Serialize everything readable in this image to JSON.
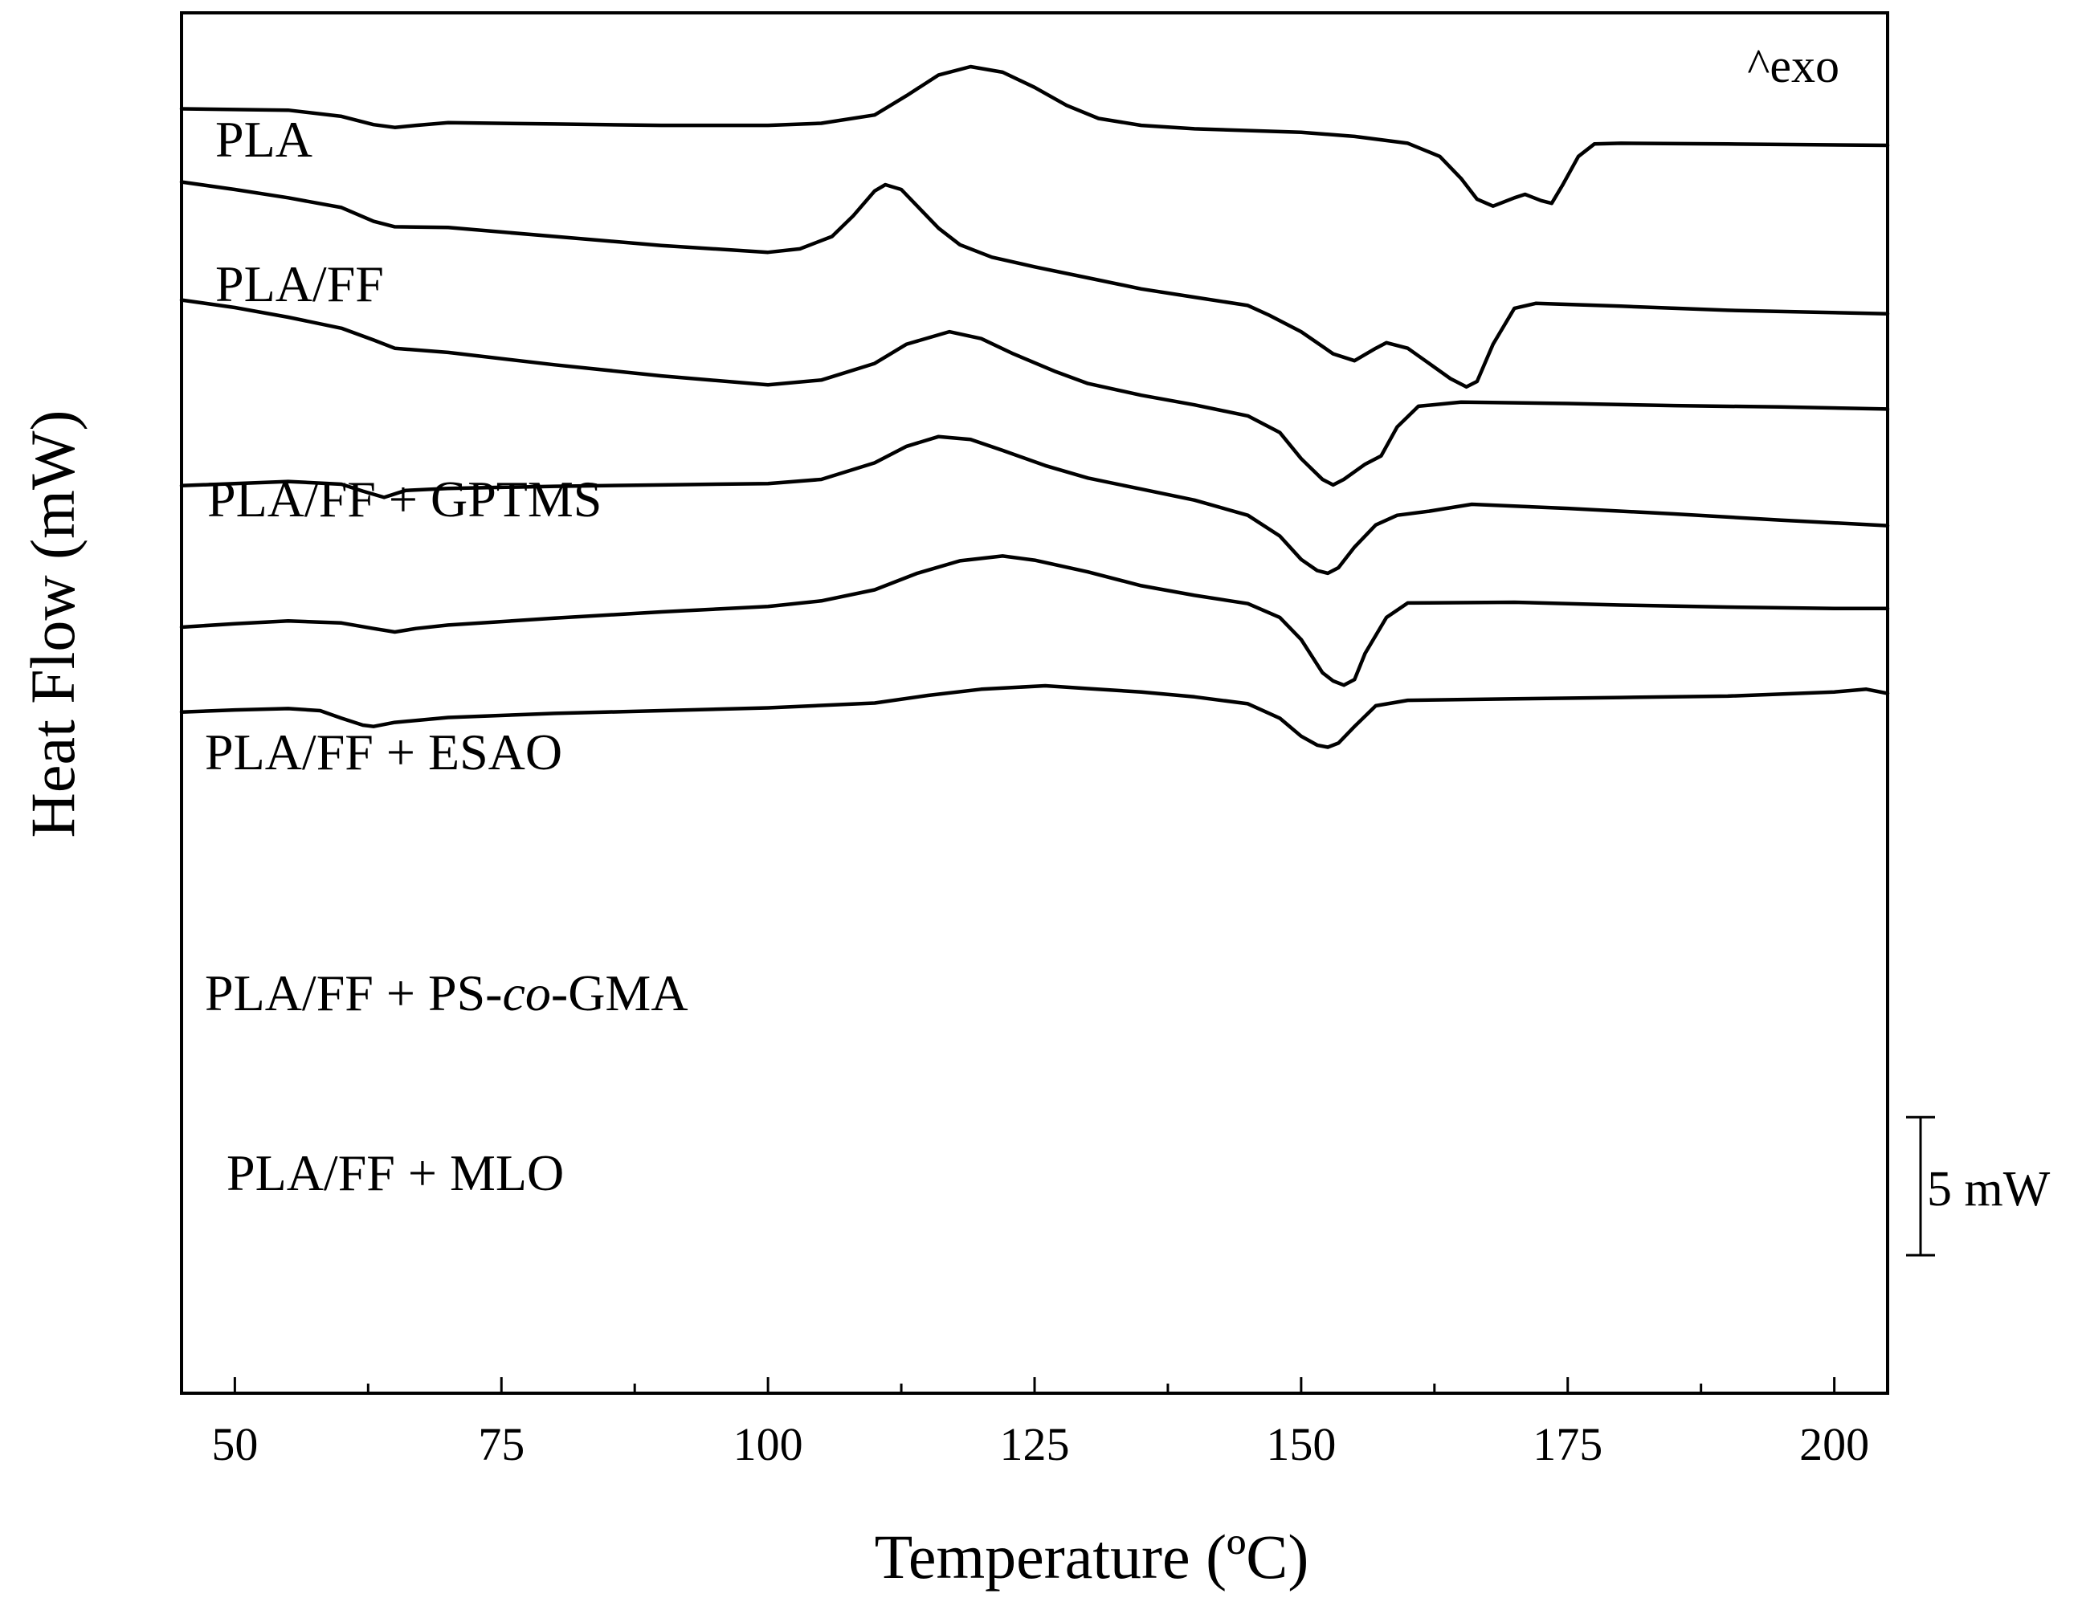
{
  "chart_data": {
    "type": "line",
    "xlabel": "Temperature (ºC)",
    "ylabel": "Heat Flow (mW)",
    "xlim": [
      45,
      205
    ],
    "ylim": [
      0,
      100
    ],
    "xticks": [
      50,
      75,
      100,
      125,
      150,
      175,
      200
    ],
    "x_minor_step": 12.5,
    "annotation": "^exo",
    "scale_bar": {
      "label": "5 mW",
      "value_mw": 5,
      "from": 10.0,
      "to": 20.0
    },
    "series": [
      {
        "name": "PLA",
        "label_parts": [
          {
            "text": "PLA",
            "italic": false
          }
        ],
        "points": [
          [
            45,
            93.05
          ],
          [
            55,
            92.95
          ],
          [
            60,
            92.5
          ],
          [
            63,
            91.9
          ],
          [
            65,
            91.7
          ],
          [
            67,
            91.85
          ],
          [
            70,
            92.05
          ],
          [
            80,
            91.95
          ],
          [
            90,
            91.85
          ],
          [
            100,
            91.85
          ],
          [
            105,
            92.0
          ],
          [
            110,
            92.6
          ],
          [
            113,
            94.0
          ],
          [
            116,
            95.5
          ],
          [
            119,
            96.1
          ],
          [
            122,
            95.7
          ],
          [
            125,
            94.6
          ],
          [
            128,
            93.3
          ],
          [
            131,
            92.35
          ],
          [
            135,
            91.85
          ],
          [
            140,
            91.6
          ],
          [
            150,
            91.35
          ],
          [
            155,
            91.05
          ],
          [
            160,
            90.55
          ],
          [
            163,
            89.6
          ],
          [
            165,
            88.0
          ],
          [
            166.5,
            86.5
          ],
          [
            168,
            86.0
          ],
          [
            170,
            86.6
          ],
          [
            171,
            86.85
          ],
          [
            172.5,
            86.4
          ],
          [
            173.5,
            86.2
          ],
          [
            174.5,
            87.5
          ],
          [
            176,
            89.6
          ],
          [
            177.5,
            90.5
          ],
          [
            180,
            90.55
          ],
          [
            190,
            90.5
          ],
          [
            205,
            90.4
          ]
        ]
      },
      {
        "name": "PLA/FF",
        "label_parts": [
          {
            "text": "PLA/FF",
            "italic": false
          }
        ],
        "points": [
          [
            45,
            87.75
          ],
          [
            50,
            87.2
          ],
          [
            55,
            86.6
          ],
          [
            60,
            85.9
          ],
          [
            63,
            84.9
          ],
          [
            65,
            84.5
          ],
          [
            70,
            84.45
          ],
          [
            80,
            83.8
          ],
          [
            90,
            83.15
          ],
          [
            100,
            82.65
          ],
          [
            103,
            82.9
          ],
          [
            106,
            83.8
          ],
          [
            108,
            85.3
          ],
          [
            110,
            87.1
          ],
          [
            111,
            87.55
          ],
          [
            112.5,
            87.2
          ],
          [
            114,
            86.0
          ],
          [
            116,
            84.4
          ],
          [
            118,
            83.2
          ],
          [
            121,
            82.3
          ],
          [
            125,
            81.6
          ],
          [
            130,
            80.8
          ],
          [
            135,
            80.0
          ],
          [
            140,
            79.4
          ],
          [
            145,
            78.8
          ],
          [
            147,
            78.1
          ],
          [
            150,
            76.9
          ],
          [
            153,
            75.3
          ],
          [
            155,
            74.8
          ],
          [
            157,
            75.7
          ],
          [
            158,
            76.1
          ],
          [
            160,
            75.7
          ],
          [
            162,
            74.6
          ],
          [
            164,
            73.5
          ],
          [
            165.5,
            72.9
          ],
          [
            166.5,
            73.3
          ],
          [
            168,
            76.0
          ],
          [
            170,
            78.6
          ],
          [
            172,
            78.95
          ],
          [
            180,
            78.75
          ],
          [
            190,
            78.45
          ],
          [
            205,
            78.2
          ]
        ]
      },
      {
        "name": "PLA/FF + GPTMS",
        "label_parts": [
          {
            "text": "PLA/FF + GPTMS",
            "italic": false
          }
        ],
        "points": [
          [
            45,
            79.2
          ],
          [
            50,
            78.65
          ],
          [
            55,
            77.95
          ],
          [
            60,
            77.15
          ],
          [
            63,
            76.3
          ],
          [
            65,
            75.7
          ],
          [
            70,
            75.4
          ],
          [
            80,
            74.5
          ],
          [
            90,
            73.7
          ],
          [
            100,
            73.05
          ],
          [
            105,
            73.4
          ],
          [
            110,
            74.6
          ],
          [
            113,
            76.0
          ],
          [
            117,
            76.9
          ],
          [
            120,
            76.4
          ],
          [
            123,
            75.3
          ],
          [
            127,
            74.0
          ],
          [
            130,
            73.15
          ],
          [
            135,
            72.3
          ],
          [
            140,
            71.6
          ],
          [
            145,
            70.8
          ],
          [
            148,
            69.6
          ],
          [
            150,
            67.7
          ],
          [
            152,
            66.2
          ],
          [
            153,
            65.8
          ],
          [
            154,
            66.2
          ],
          [
            156,
            67.3
          ],
          [
            157.5,
            67.9
          ],
          [
            159,
            70.0
          ],
          [
            161,
            71.5
          ],
          [
            165,
            71.8
          ],
          [
            175,
            71.7
          ],
          [
            185,
            71.55
          ],
          [
            195,
            71.45
          ],
          [
            205,
            71.3
          ]
        ]
      },
      {
        "name": "PLA/FF + ESAO",
        "label_parts": [
          {
            "text": "PLA/FF + ESAO",
            "italic": false
          }
        ],
        "points": [
          [
            45,
            65.75
          ],
          [
            50,
            65.9
          ],
          [
            55,
            66.05
          ],
          [
            60,
            65.85
          ],
          [
            62,
            65.35
          ],
          [
            64,
            64.9
          ],
          [
            66,
            65.4
          ],
          [
            70,
            65.55
          ],
          [
            80,
            65.7
          ],
          [
            90,
            65.8
          ],
          [
            100,
            65.9
          ],
          [
            105,
            66.2
          ],
          [
            110,
            67.4
          ],
          [
            113,
            68.6
          ],
          [
            116,
            69.3
          ],
          [
            119,
            69.1
          ],
          [
            122,
            68.3
          ],
          [
            126,
            67.2
          ],
          [
            130,
            66.3
          ],
          [
            135,
            65.5
          ],
          [
            140,
            64.7
          ],
          [
            145,
            63.6
          ],
          [
            148,
            62.1
          ],
          [
            150,
            60.4
          ],
          [
            151.5,
            59.6
          ],
          [
            152.5,
            59.4
          ],
          [
            153.5,
            59.8
          ],
          [
            155,
            61.3
          ],
          [
            157,
            62.9
          ],
          [
            159,
            63.6
          ],
          [
            162,
            63.9
          ],
          [
            166,
            64.4
          ],
          [
            175,
            64.1
          ],
          [
            185,
            63.7
          ],
          [
            195,
            63.25
          ],
          [
            205,
            62.85
          ]
        ]
      },
      {
        "name": "PLA/FF + PS-co-GMA",
        "label_parts": [
          {
            "text": "PLA/FF + PS-",
            "italic": false
          },
          {
            "text": "co",
            "italic": true
          },
          {
            "text": "-GMA",
            "italic": false
          }
        ],
        "points": [
          [
            45,
            55.5
          ],
          [
            50,
            55.75
          ],
          [
            55,
            55.95
          ],
          [
            60,
            55.8
          ],
          [
            63,
            55.4
          ],
          [
            65,
            55.15
          ],
          [
            67,
            55.4
          ],
          [
            70,
            55.65
          ],
          [
            80,
            56.15
          ],
          [
            90,
            56.6
          ],
          [
            100,
            57.0
          ],
          [
            105,
            57.4
          ],
          [
            110,
            58.2
          ],
          [
            114,
            59.4
          ],
          [
            118,
            60.3
          ],
          [
            122,
            60.65
          ],
          [
            125,
            60.35
          ],
          [
            130,
            59.5
          ],
          [
            135,
            58.5
          ],
          [
            140,
            57.8
          ],
          [
            145,
            57.2
          ],
          [
            148,
            56.2
          ],
          [
            150,
            54.6
          ],
          [
            152,
            52.2
          ],
          [
            153,
            51.6
          ],
          [
            154,
            51.3
          ],
          [
            155,
            51.7
          ],
          [
            156,
            53.6
          ],
          [
            158,
            56.2
          ],
          [
            160,
            57.25
          ],
          [
            170,
            57.3
          ],
          [
            180,
            57.1
          ],
          [
            190,
            56.95
          ],
          [
            200,
            56.85
          ],
          [
            205,
            56.85
          ]
        ]
      },
      {
        "name": "PLA/FF + MLO",
        "label_parts": [
          {
            "text": "PLA/FF + MLO",
            "italic": false
          }
        ],
        "points": [
          [
            45,
            49.35
          ],
          [
            50,
            49.5
          ],
          [
            55,
            49.6
          ],
          [
            58,
            49.45
          ],
          [
            60,
            48.9
          ],
          [
            62,
            48.4
          ],
          [
            63,
            48.3
          ],
          [
            65,
            48.6
          ],
          [
            70,
            48.95
          ],
          [
            80,
            49.25
          ],
          [
            90,
            49.45
          ],
          [
            100,
            49.65
          ],
          [
            110,
            50.0
          ],
          [
            115,
            50.55
          ],
          [
            120,
            51.0
          ],
          [
            126,
            51.25
          ],
          [
            130,
            51.05
          ],
          [
            135,
            50.8
          ],
          [
            140,
            50.45
          ],
          [
            145,
            49.95
          ],
          [
            148,
            48.9
          ],
          [
            150,
            47.6
          ],
          [
            151.5,
            46.95
          ],
          [
            152.5,
            46.8
          ],
          [
            153.5,
            47.1
          ],
          [
            155,
            48.3
          ],
          [
            157,
            49.8
          ],
          [
            160,
            50.2
          ],
          [
            170,
            50.3
          ],
          [
            180,
            50.4
          ],
          [
            190,
            50.5
          ],
          [
            200,
            50.8
          ],
          [
            203,
            51.0
          ],
          [
            205,
            50.7
          ]
        ]
      }
    ]
  }
}
